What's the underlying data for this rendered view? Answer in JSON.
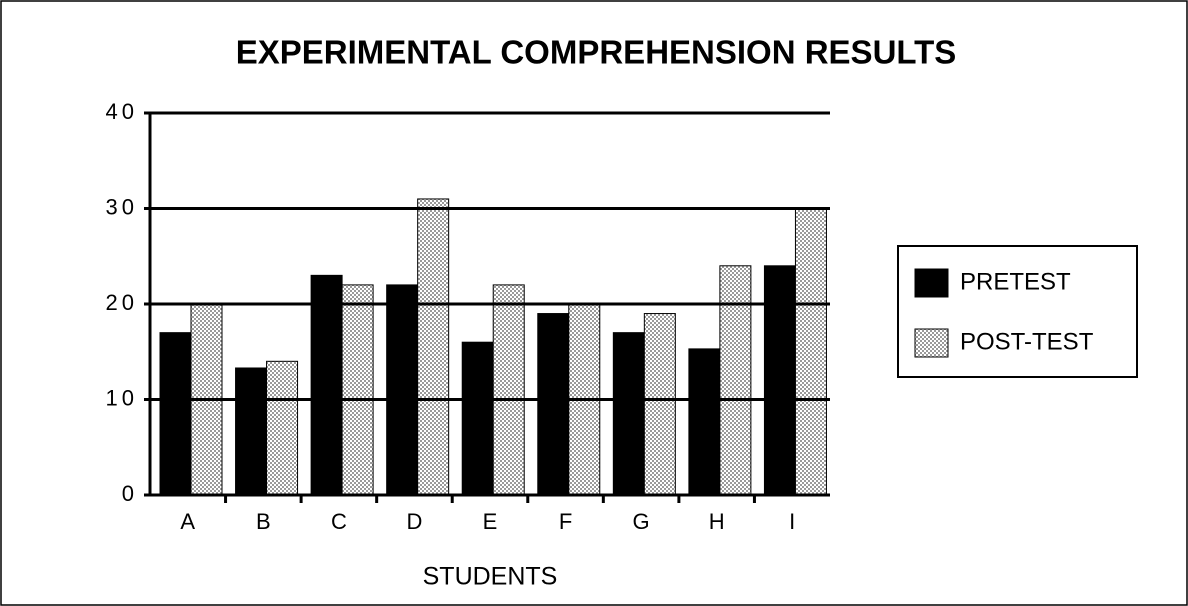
{
  "chart_data": {
    "type": "bar",
    "title": "EXPERIMENTAL COMPREHENSION RESULTS",
    "xlabel": "STUDENTS",
    "categories": [
      "A",
      "B",
      "C",
      "D",
      "E",
      "F",
      "G",
      "H",
      "I"
    ],
    "series": [
      {
        "name": "PRETEST",
        "color": "#000000",
        "values": [
          17,
          13.3,
          23,
          22,
          16,
          19,
          17,
          15.3,
          24
        ]
      },
      {
        "name": "POST-TEST",
        "color": "#9a9a9a",
        "values": [
          20,
          14,
          22,
          31,
          22,
          20,
          19,
          24,
          30
        ]
      }
    ],
    "ylim": [
      0,
      40
    ],
    "yticks": [
      0,
      10,
      20,
      30,
      40
    ],
    "grid": true,
    "legend": "right"
  }
}
